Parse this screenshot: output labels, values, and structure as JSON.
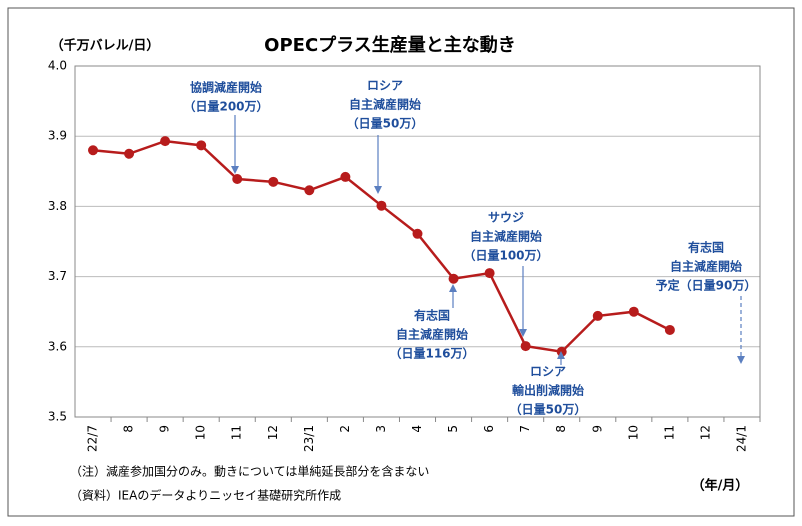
{
  "chart_data": {
    "type": "line",
    "title": "OPECプラス生産量と主な動き",
    "y_unit": "（千万バレル/日）",
    "x_unit": "（年/月）",
    "notes": [
      "（注）減産参加国分のみ。動きについては単純延長部分を含まない",
      "（資料）IEAのデータよりニッセイ基礎研究所作成"
    ],
    "categories": [
      "22/7",
      "8",
      "9",
      "10",
      "11",
      "12",
      "23/1",
      "2",
      "3",
      "4",
      "5",
      "6",
      "7",
      "8",
      "9",
      "10",
      "11",
      "12",
      "24/1"
    ],
    "series": [
      {
        "name": "OPECプラス生産量",
        "color": "#b71c1c",
        "values": [
          3.88,
          3.875,
          3.893,
          3.887,
          3.839,
          3.835,
          3.823,
          3.842,
          3.801,
          3.761,
          3.697,
          3.705,
          3.601,
          3.593,
          3.644,
          3.65,
          3.624,
          null,
          null
        ]
      }
    ],
    "ylim": [
      3.5,
      4.0
    ],
    "yticks": [
      3.5,
      3.6,
      3.7,
      3.8,
      3.9,
      {
        "value": 4.0,
        "label": "4.0"
      }
    ],
    "grid": true,
    "annotations": [
      {
        "lines": [
          "協調減産開始",
          "（日量200万）"
        ]
      },
      {
        "lines": [
          "ロシア",
          "自主減産開始",
          "（日量50万）"
        ]
      },
      {
        "lines": [
          "サウジ",
          "自主減産開始",
          "（日量100万）"
        ]
      },
      {
        "lines": [
          "有志国",
          "自主減産開始",
          "（日量116万）"
        ]
      },
      {
        "lines": [
          "ロシア",
          "輸出削減開始",
          "（日量50万）"
        ]
      },
      {
        "lines": [
          "有志国",
          "自主減産開始",
          "予定（日量90万）"
        ]
      }
    ]
  }
}
